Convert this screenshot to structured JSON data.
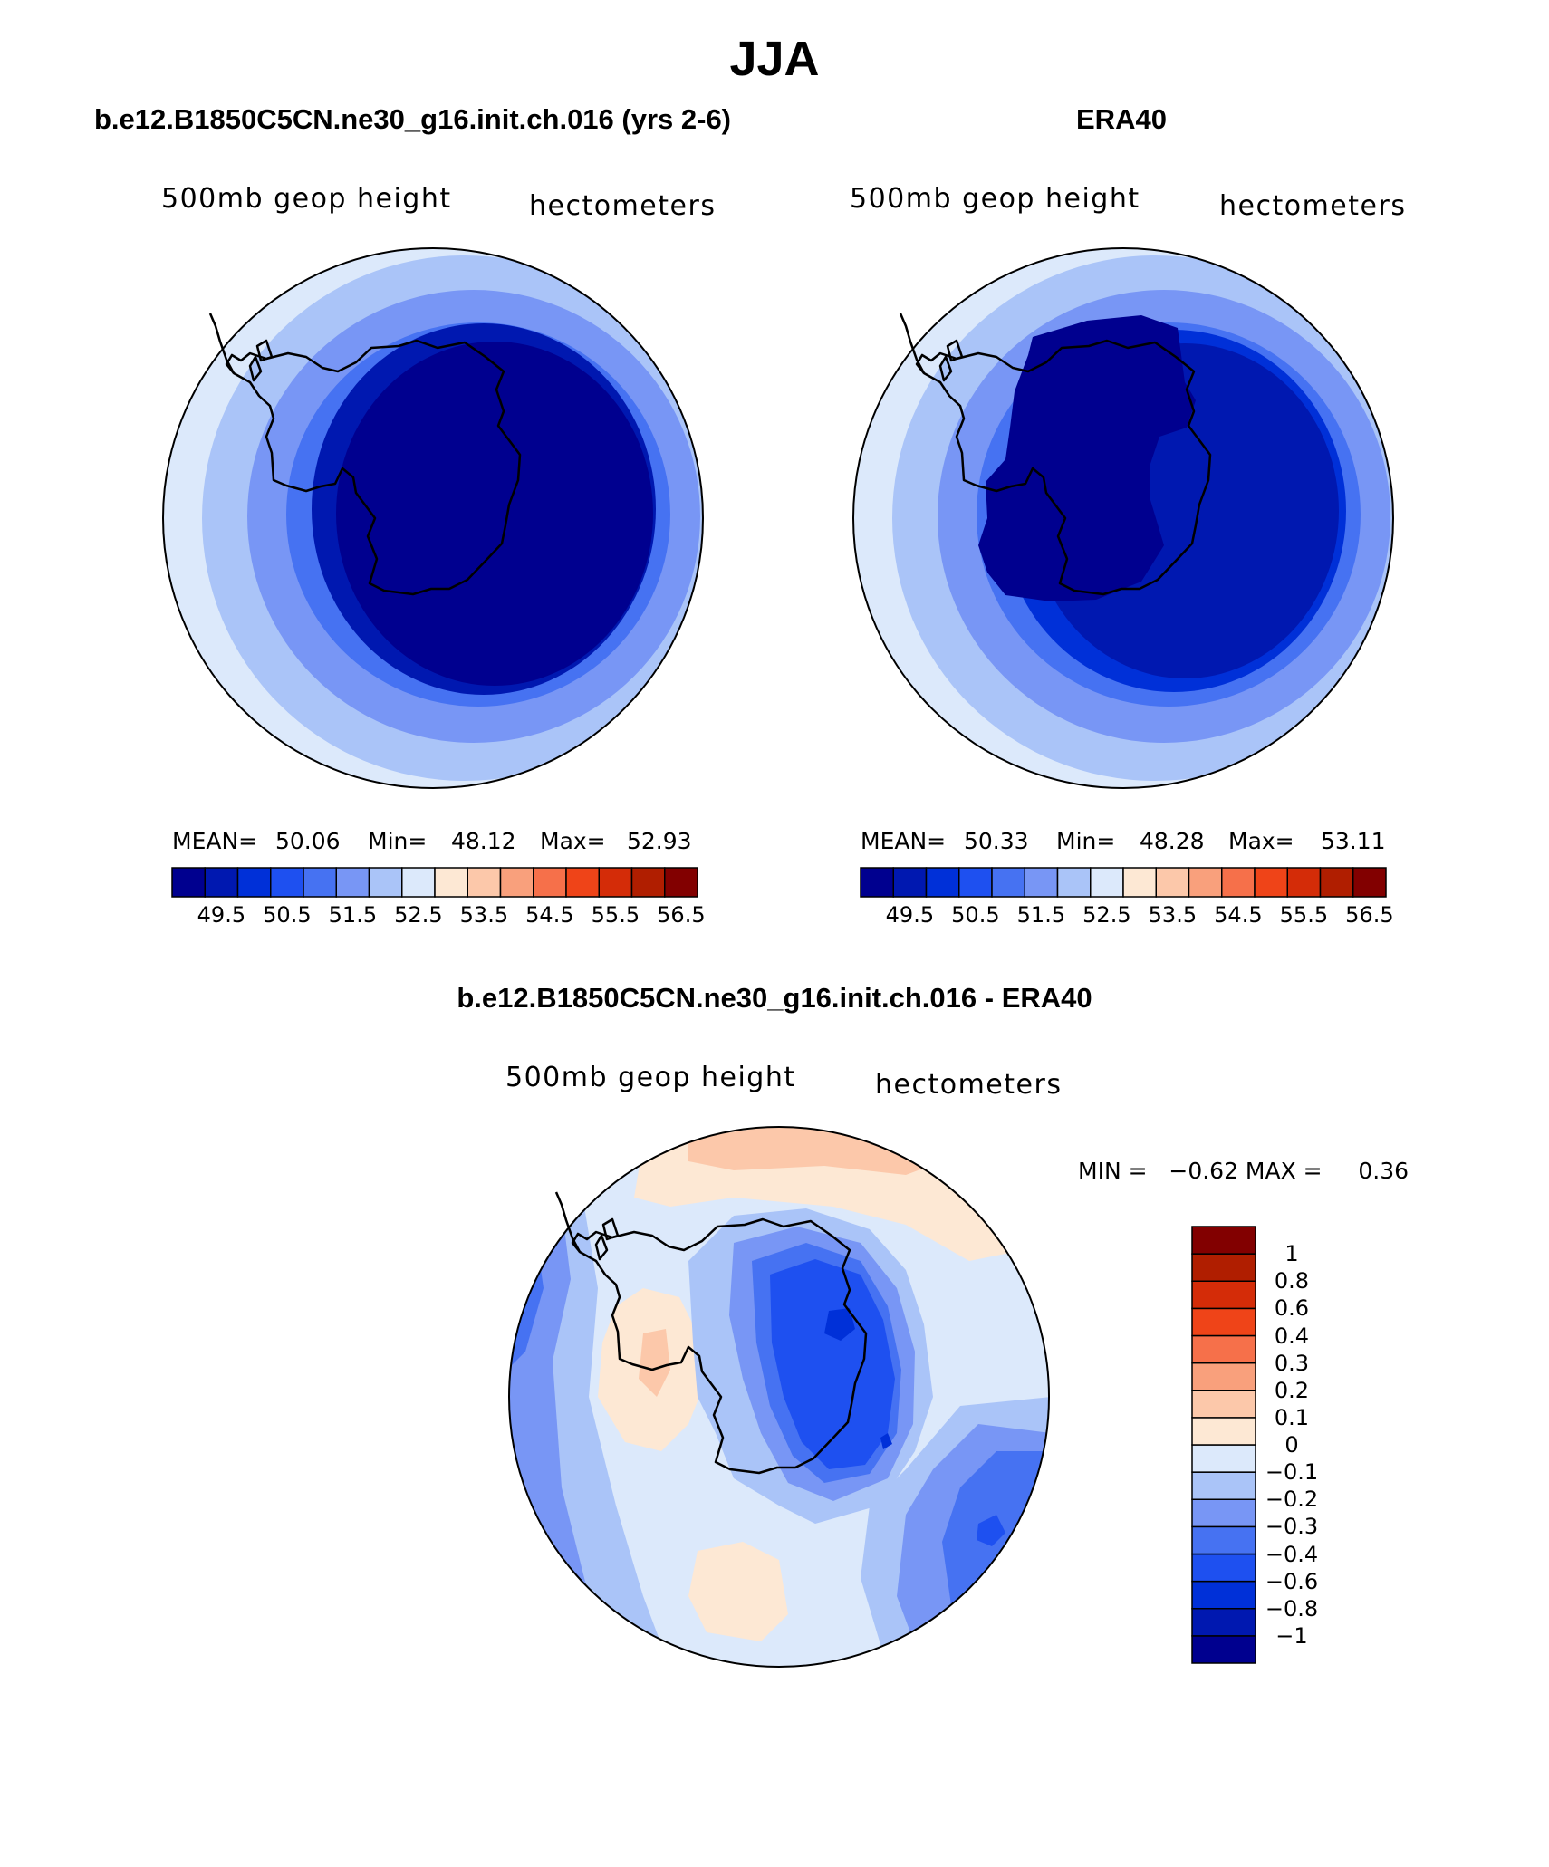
{
  "main_title": "JJA",
  "panels": {
    "model": {
      "title": "b.e12.B1850C5CN.ne30_g16.init.ch.016 (yrs 2-6)",
      "left_label": "500mb geop height",
      "right_label": "hectometers",
      "stats": {
        "mean_label": "MEAN=",
        "mean": "50.06",
        "min_label": "Min=",
        "min": "48.12",
        "max_label": "Max=",
        "max": "52.93"
      }
    },
    "obs": {
      "title": "ERA40",
      "left_label": "500mb geop height",
      "right_label": "hectometers",
      "stats": {
        "mean_label": "MEAN=",
        "mean": "50.33",
        "min_label": "Min=",
        "min": "48.28",
        "max_label": "Max=",
        "max": "53.11"
      }
    },
    "diff": {
      "title": "b.e12.B1850C5CN.ne30_g16.init.ch.016 - ERA40",
      "left_label": "500mb geop height",
      "right_label": "hectometers",
      "range_text": "MIN =   −0.62 MAX =     0.36"
    }
  },
  "colorbar_top": {
    "colors": [
      "#00008f",
      "#0018b0",
      "#0030d8",
      "#1e50f0",
      "#4672f2",
      "#7896f5",
      "#aac4f8",
      "#dce9fb",
      "#fde8d4",
      "#fcc8aa",
      "#f9a07c",
      "#f6704a",
      "#ef4418",
      "#d42c08",
      "#b01e00",
      "#820000"
    ],
    "labels": [
      "49.5",
      "50.5",
      "51.5",
      "52.5",
      "53.5",
      "54.5",
      "55.5",
      "56.5"
    ]
  },
  "colorbar_diff": {
    "colors": [
      "#00008f",
      "#0018b0",
      "#0030d8",
      "#1e50f0",
      "#4672f2",
      "#7896f5",
      "#aac4f8",
      "#dce9fb",
      "#fde8d4",
      "#fcc8aa",
      "#f9a07c",
      "#f6704a",
      "#ef4418",
      "#d42c08",
      "#b01e00",
      "#820000"
    ],
    "labels": [
      "1",
      "0.8",
      "0.6",
      "0.4",
      "0.3",
      "0.2",
      "0.1",
      "0",
      "−0.1",
      "−0.2",
      "−0.3",
      "−0.4",
      "−0.6",
      "−0.8",
      "−1"
    ]
  }
}
